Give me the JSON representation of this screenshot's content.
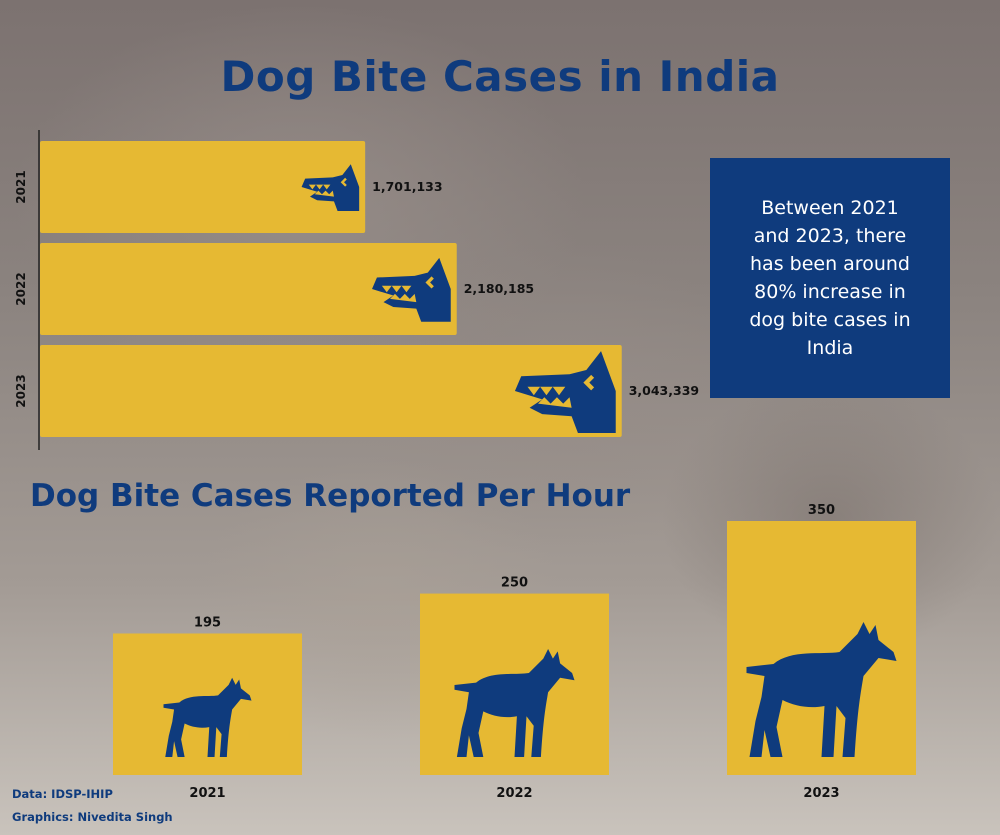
{
  "title": "Dog Bite Cases in India",
  "callout": "Between 2021 and 2023, there has been around 80% increase in dog bite cases in India",
  "colors": {
    "bar": "#e6b933",
    "accent": "#0f3b7d",
    "text": "#111111"
  },
  "chart_data": [
    {
      "type": "bar",
      "orientation": "horizontal",
      "categories": [
        "2021",
        "2022",
        "2023"
      ],
      "values": [
        1701133,
        2180185,
        3043339
      ],
      "value_labels": [
        "1,701,133",
        "2,180,185",
        "3,043,339"
      ],
      "icon": "dog-head-icon",
      "xlim": [
        0,
        3050000
      ]
    },
    {
      "type": "bar",
      "orientation": "vertical",
      "title": "Dog Bite Cases Reported Per Hour",
      "categories": [
        "2021",
        "2022",
        "2023"
      ],
      "values": [
        195,
        250,
        350
      ],
      "value_labels": [
        "195",
        "250",
        "350"
      ],
      "icon": "dog-silhouette-icon",
      "ylim": [
        0,
        350
      ]
    }
  ],
  "credits": {
    "data": "Data: IDSP-IHIP",
    "graphics": "Graphics: Nivedita Singh"
  }
}
